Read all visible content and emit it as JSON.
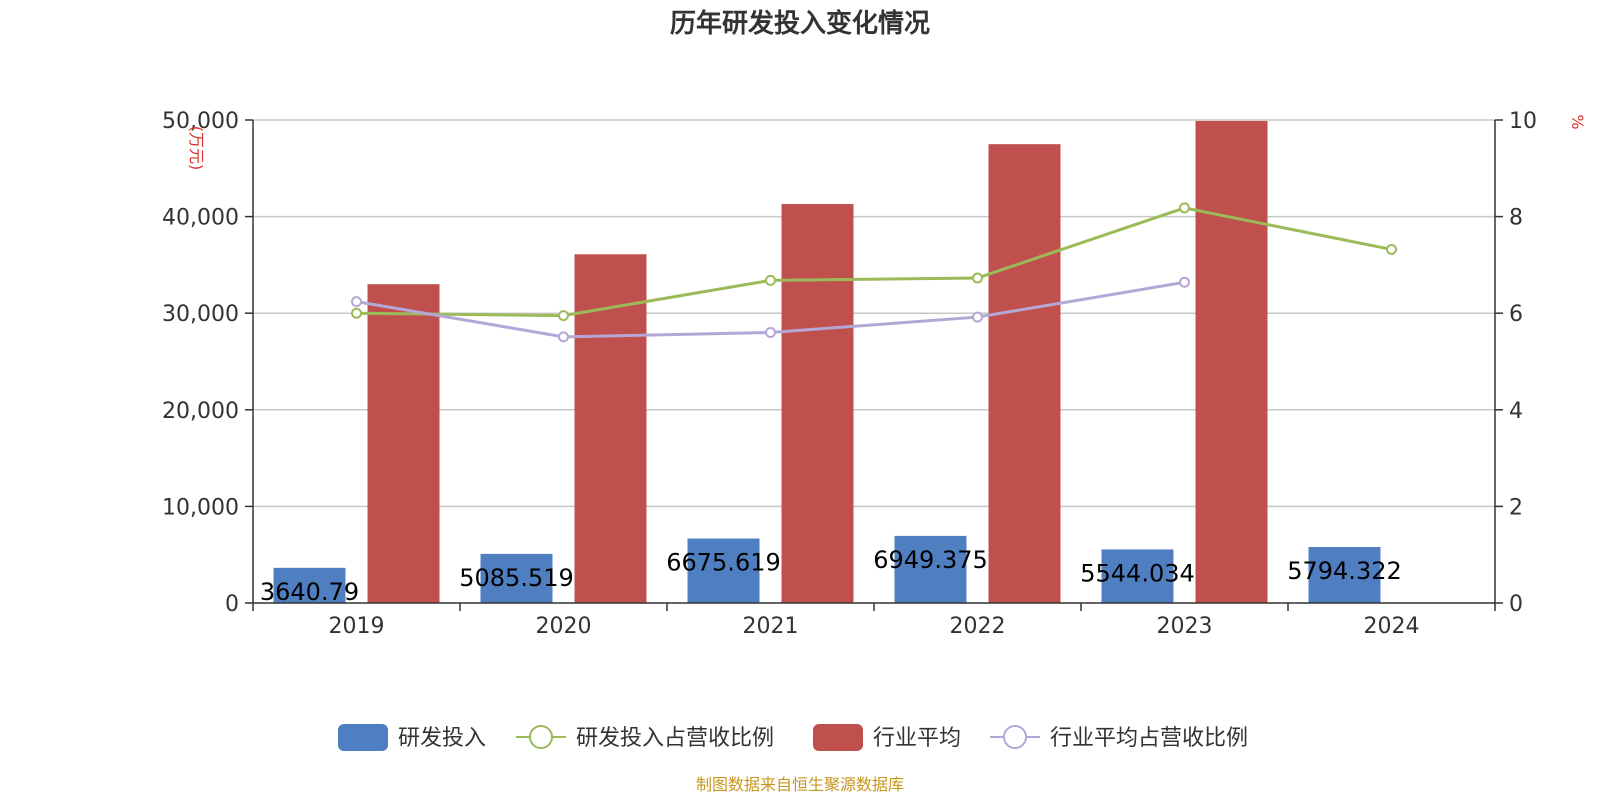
{
  "chart_data": {
    "type": "bar",
    "title": "历年研发投入变化情况",
    "categories": [
      "2019",
      "2020",
      "2021",
      "2022",
      "2023",
      "2024"
    ],
    "y_left": {
      "unit": "(万元)",
      "ticks": [
        "0",
        "10,000",
        "20,000",
        "30,000",
        "40,000",
        "50,000"
      ],
      "ylim": [
        0,
        50000
      ]
    },
    "y_right": {
      "unit": "%",
      "ticks": [
        "0",
        "2",
        "4",
        "6",
        "8",
        "10"
      ],
      "ylim": [
        0,
        10
      ]
    },
    "series": [
      {
        "name": "研发投入",
        "kind": "bar",
        "axis": "left",
        "color": "#4f7fc1",
        "values": [
          3640.79,
          5085.519,
          6675.619,
          6949.375,
          5544.034,
          5794.322
        ],
        "labels": [
          "3640.79",
          "5085.519",
          "6675.619",
          "6949.375",
          "5544.034",
          "5794.322"
        ]
      },
      {
        "name": "研发投入占营收比例",
        "kind": "line",
        "axis": "right",
        "color": "#9bbb59",
        "values": [
          6.0,
          5.95,
          6.68,
          6.73,
          8.18,
          7.32
        ]
      },
      {
        "name": "行业平均",
        "kind": "bar",
        "axis": "left",
        "color": "#c0504d",
        "values": [
          33000,
          36100,
          41300,
          47500,
          49900,
          null
        ]
      },
      {
        "name": "行业平均占营收比例",
        "kind": "line",
        "axis": "right",
        "color": "#b4a7d6",
        "values": [
          6.24,
          5.51,
          5.6,
          5.92,
          6.64,
          null
        ]
      }
    ],
    "grid": true,
    "legend_position": "bottom"
  },
  "source_text": "制图数据来自恒生聚源数据库"
}
